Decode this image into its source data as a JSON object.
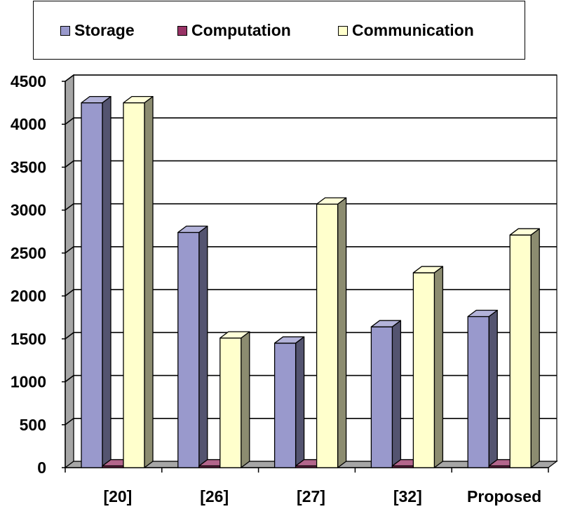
{
  "chart_data": {
    "type": "bar",
    "categories": [
      "[20]",
      "[26]",
      "[27]",
      "[32]",
      "Proposed"
    ],
    "series": [
      {
        "name": "Storage",
        "values": [
          4250,
          2740,
          1450,
          1640,
          1760
        ],
        "color": "#9999cc"
      },
      {
        "name": "Computation",
        "values": [
          20,
          20,
          20,
          20,
          20
        ],
        "color": "#993366"
      },
      {
        "name": "Communication",
        "values": [
          4250,
          1510,
          3070,
          2270,
          2710
        ],
        "color": "#ffffcc"
      }
    ],
    "title": "",
    "xlabel": "",
    "ylabel": "",
    "ylim": [
      0,
      4500
    ],
    "yticks": [
      0,
      500,
      1000,
      1500,
      2000,
      2500,
      3000,
      3500,
      4000,
      4500
    ],
    "grid": true,
    "legend_position": "top"
  }
}
